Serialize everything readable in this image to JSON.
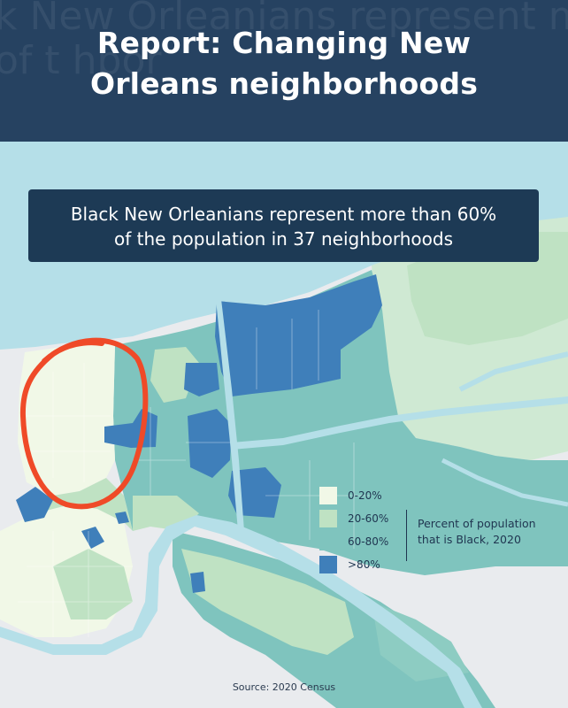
{
  "header": {
    "title_line1": "Report: Changing New",
    "title_line2": "Orleans neighborhoods",
    "ghost_line1": "k New Orleanians represent more",
    "ghost_line2": "of t                                  hbor"
  },
  "callout": {
    "line1": "Black New Orleanians represent more than 60%",
    "line2": "of the population in 37 neighborhoods"
  },
  "legend": {
    "title_line1": "Percent of population",
    "title_line2": "that is Black, 2020",
    "items": [
      {
        "label": "0-20%",
        "color": "#f1f8e7"
      },
      {
        "label": "20-60%",
        "color": "#bfe2c3"
      },
      {
        "label": "60-80%",
        "color": "#7fc4be"
      },
      {
        "label": ">80%",
        "color": "#3f7fba"
      }
    ]
  },
  "source": "Source: 2020 Census",
  "colors": {
    "header_bg": "#264261",
    "water": "#b5dfe8",
    "land_outside": "#e9ebee",
    "annotation_circle": "#ef4a28"
  }
}
